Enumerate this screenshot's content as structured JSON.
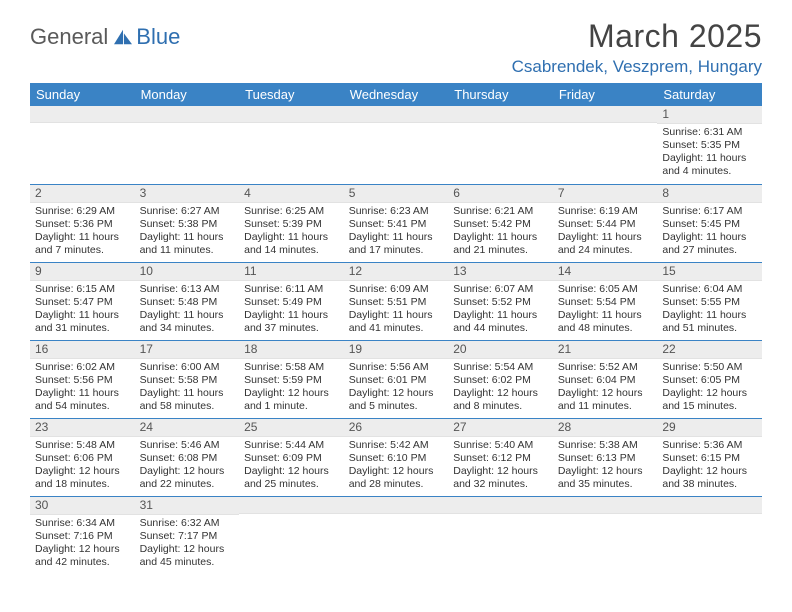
{
  "logo": {
    "part1": "General",
    "part2": "Blue"
  },
  "title": "March 2025",
  "location": "Csabrendek, Veszprem, Hungary",
  "colors": {
    "header_bg": "#3a83c5",
    "header_fg": "#ffffff",
    "daynum_bg": "#ededed",
    "rule": "#3a83c5",
    "accent": "#2f6fb0",
    "text": "#333333"
  },
  "weekdays": [
    "Sunday",
    "Monday",
    "Tuesday",
    "Wednesday",
    "Thursday",
    "Friday",
    "Saturday"
  ],
  "weeks": [
    [
      {
        "n": "",
        "sr": "",
        "ss": "",
        "dl": ""
      },
      {
        "n": "",
        "sr": "",
        "ss": "",
        "dl": ""
      },
      {
        "n": "",
        "sr": "",
        "ss": "",
        "dl": ""
      },
      {
        "n": "",
        "sr": "",
        "ss": "",
        "dl": ""
      },
      {
        "n": "",
        "sr": "",
        "ss": "",
        "dl": ""
      },
      {
        "n": "",
        "sr": "",
        "ss": "",
        "dl": ""
      },
      {
        "n": "1",
        "sr": "Sunrise: 6:31 AM",
        "ss": "Sunset: 5:35 PM",
        "dl": "Daylight: 11 hours and 4 minutes."
      }
    ],
    [
      {
        "n": "2",
        "sr": "Sunrise: 6:29 AM",
        "ss": "Sunset: 5:36 PM",
        "dl": "Daylight: 11 hours and 7 minutes."
      },
      {
        "n": "3",
        "sr": "Sunrise: 6:27 AM",
        "ss": "Sunset: 5:38 PM",
        "dl": "Daylight: 11 hours and 11 minutes."
      },
      {
        "n": "4",
        "sr": "Sunrise: 6:25 AM",
        "ss": "Sunset: 5:39 PM",
        "dl": "Daylight: 11 hours and 14 minutes."
      },
      {
        "n": "5",
        "sr": "Sunrise: 6:23 AM",
        "ss": "Sunset: 5:41 PM",
        "dl": "Daylight: 11 hours and 17 minutes."
      },
      {
        "n": "6",
        "sr": "Sunrise: 6:21 AM",
        "ss": "Sunset: 5:42 PM",
        "dl": "Daylight: 11 hours and 21 minutes."
      },
      {
        "n": "7",
        "sr": "Sunrise: 6:19 AM",
        "ss": "Sunset: 5:44 PM",
        "dl": "Daylight: 11 hours and 24 minutes."
      },
      {
        "n": "8",
        "sr": "Sunrise: 6:17 AM",
        "ss": "Sunset: 5:45 PM",
        "dl": "Daylight: 11 hours and 27 minutes."
      }
    ],
    [
      {
        "n": "9",
        "sr": "Sunrise: 6:15 AM",
        "ss": "Sunset: 5:47 PM",
        "dl": "Daylight: 11 hours and 31 minutes."
      },
      {
        "n": "10",
        "sr": "Sunrise: 6:13 AM",
        "ss": "Sunset: 5:48 PM",
        "dl": "Daylight: 11 hours and 34 minutes."
      },
      {
        "n": "11",
        "sr": "Sunrise: 6:11 AM",
        "ss": "Sunset: 5:49 PM",
        "dl": "Daylight: 11 hours and 37 minutes."
      },
      {
        "n": "12",
        "sr": "Sunrise: 6:09 AM",
        "ss": "Sunset: 5:51 PM",
        "dl": "Daylight: 11 hours and 41 minutes."
      },
      {
        "n": "13",
        "sr": "Sunrise: 6:07 AM",
        "ss": "Sunset: 5:52 PM",
        "dl": "Daylight: 11 hours and 44 minutes."
      },
      {
        "n": "14",
        "sr": "Sunrise: 6:05 AM",
        "ss": "Sunset: 5:54 PM",
        "dl": "Daylight: 11 hours and 48 minutes."
      },
      {
        "n": "15",
        "sr": "Sunrise: 6:04 AM",
        "ss": "Sunset: 5:55 PM",
        "dl": "Daylight: 11 hours and 51 minutes."
      }
    ],
    [
      {
        "n": "16",
        "sr": "Sunrise: 6:02 AM",
        "ss": "Sunset: 5:56 PM",
        "dl": "Daylight: 11 hours and 54 minutes."
      },
      {
        "n": "17",
        "sr": "Sunrise: 6:00 AM",
        "ss": "Sunset: 5:58 PM",
        "dl": "Daylight: 11 hours and 58 minutes."
      },
      {
        "n": "18",
        "sr": "Sunrise: 5:58 AM",
        "ss": "Sunset: 5:59 PM",
        "dl": "Daylight: 12 hours and 1 minute."
      },
      {
        "n": "19",
        "sr": "Sunrise: 5:56 AM",
        "ss": "Sunset: 6:01 PM",
        "dl": "Daylight: 12 hours and 5 minutes."
      },
      {
        "n": "20",
        "sr": "Sunrise: 5:54 AM",
        "ss": "Sunset: 6:02 PM",
        "dl": "Daylight: 12 hours and 8 minutes."
      },
      {
        "n": "21",
        "sr": "Sunrise: 5:52 AM",
        "ss": "Sunset: 6:04 PM",
        "dl": "Daylight: 12 hours and 11 minutes."
      },
      {
        "n": "22",
        "sr": "Sunrise: 5:50 AM",
        "ss": "Sunset: 6:05 PM",
        "dl": "Daylight: 12 hours and 15 minutes."
      }
    ],
    [
      {
        "n": "23",
        "sr": "Sunrise: 5:48 AM",
        "ss": "Sunset: 6:06 PM",
        "dl": "Daylight: 12 hours and 18 minutes."
      },
      {
        "n": "24",
        "sr": "Sunrise: 5:46 AM",
        "ss": "Sunset: 6:08 PM",
        "dl": "Daylight: 12 hours and 22 minutes."
      },
      {
        "n": "25",
        "sr": "Sunrise: 5:44 AM",
        "ss": "Sunset: 6:09 PM",
        "dl": "Daylight: 12 hours and 25 minutes."
      },
      {
        "n": "26",
        "sr": "Sunrise: 5:42 AM",
        "ss": "Sunset: 6:10 PM",
        "dl": "Daylight: 12 hours and 28 minutes."
      },
      {
        "n": "27",
        "sr": "Sunrise: 5:40 AM",
        "ss": "Sunset: 6:12 PM",
        "dl": "Daylight: 12 hours and 32 minutes."
      },
      {
        "n": "28",
        "sr": "Sunrise: 5:38 AM",
        "ss": "Sunset: 6:13 PM",
        "dl": "Daylight: 12 hours and 35 minutes."
      },
      {
        "n": "29",
        "sr": "Sunrise: 5:36 AM",
        "ss": "Sunset: 6:15 PM",
        "dl": "Daylight: 12 hours and 38 minutes."
      }
    ],
    [
      {
        "n": "30",
        "sr": "Sunrise: 6:34 AM",
        "ss": "Sunset: 7:16 PM",
        "dl": "Daylight: 12 hours and 42 minutes."
      },
      {
        "n": "31",
        "sr": "Sunrise: 6:32 AM",
        "ss": "Sunset: 7:17 PM",
        "dl": "Daylight: 12 hours and 45 minutes."
      },
      {
        "n": "",
        "sr": "",
        "ss": "",
        "dl": ""
      },
      {
        "n": "",
        "sr": "",
        "ss": "",
        "dl": ""
      },
      {
        "n": "",
        "sr": "",
        "ss": "",
        "dl": ""
      },
      {
        "n": "",
        "sr": "",
        "ss": "",
        "dl": ""
      },
      {
        "n": "",
        "sr": "",
        "ss": "",
        "dl": ""
      }
    ]
  ]
}
